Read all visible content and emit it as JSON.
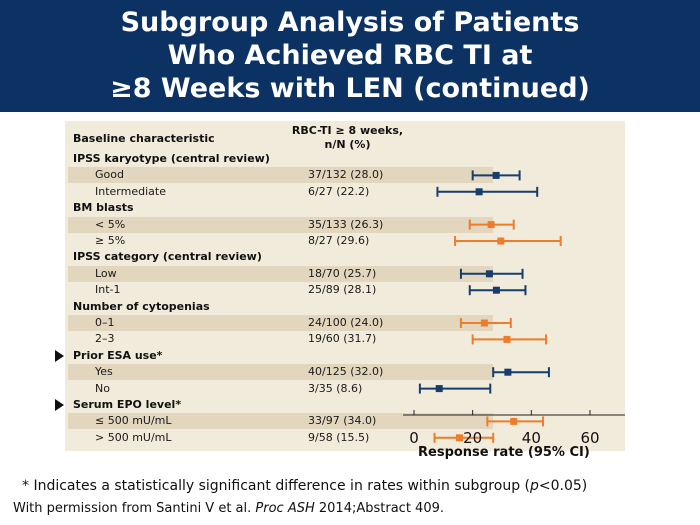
{
  "header": {
    "title_lines": [
      "Subgroup Analysis of Patients",
      "Who Achieved RBC TI at",
      "≥8 Weeks with LEN (continued)"
    ]
  },
  "table": {
    "col1_header": "Baseline characteristic",
    "col2_header_line1": "RBC-TI ≥ 8 weeks,",
    "col2_header_line2": "n/N (%)"
  },
  "chart_data": {
    "type": "forest",
    "xlabel": "Response rate (95% CI)",
    "xlim": [
      0,
      60
    ],
    "xticks": [
      0,
      20,
      40,
      60
    ],
    "colors": {
      "navy": "#173d6b",
      "orange": "#ee7d2b"
    },
    "rows": [
      {
        "type": "category",
        "label": "IPSS karyotype (central review)"
      },
      {
        "type": "item",
        "label": "Good",
        "value": "37/132 (28.0)",
        "est": 28.0,
        "lo": 20,
        "hi": 36,
        "color": "navy"
      },
      {
        "type": "item",
        "label": "Intermediate",
        "value": "6/27 (22.2)",
        "est": 22.2,
        "lo": 8,
        "hi": 42,
        "color": "navy"
      },
      {
        "type": "category",
        "label": "BM blasts"
      },
      {
        "type": "item",
        "label": "< 5%",
        "value": "35/133 (26.3)",
        "est": 26.3,
        "lo": 19,
        "hi": 34,
        "color": "orange"
      },
      {
        "type": "item",
        "label": "≥ 5%",
        "value": "8/27 (29.6)",
        "est": 29.6,
        "lo": 14,
        "hi": 50,
        "color": "orange"
      },
      {
        "type": "category",
        "label": "IPSS category (central review)"
      },
      {
        "type": "item",
        "label": "Low",
        "value": "18/70 (25.7)",
        "est": 25.7,
        "lo": 16,
        "hi": 37,
        "color": "navy"
      },
      {
        "type": "item",
        "label": "Int-1",
        "value": "25/89 (28.1)",
        "est": 28.1,
        "lo": 19,
        "hi": 38,
        "color": "navy"
      },
      {
        "type": "category",
        "label": "Number of cytopenias"
      },
      {
        "type": "item",
        "label": "0–1",
        "value": "24/100 (24.0)",
        "est": 24.0,
        "lo": 16,
        "hi": 33,
        "color": "orange"
      },
      {
        "type": "item",
        "label": "2–3",
        "value": "19/60 (31.7)",
        "est": 31.7,
        "lo": 20,
        "hi": 45,
        "color": "orange"
      },
      {
        "type": "category",
        "label": "Prior ESA use*",
        "marker": true
      },
      {
        "type": "item",
        "label": "Yes",
        "value": "40/125 (32.0)",
        "est": 32.0,
        "lo": 27,
        "hi": 46,
        "color": "navy"
      },
      {
        "type": "item",
        "label": "No",
        "value": "3/35 (8.6)",
        "est": 8.6,
        "lo": 2,
        "hi": 26,
        "color": "navy"
      },
      {
        "type": "category",
        "label": "Serum EPO level*",
        "marker": true
      },
      {
        "type": "item",
        "label": "≤ 500 mU/mL",
        "value": "33/97 (34.0)",
        "est": 34.0,
        "lo": 25,
        "hi": 44,
        "color": "orange"
      },
      {
        "type": "item",
        "label": "> 500 mU/mL",
        "value": "9/58 (15.5)",
        "est": 15.5,
        "lo": 7,
        "hi": 27,
        "color": "orange"
      }
    ]
  },
  "footnotes": {
    "asterisk_prefix": "* Indicates a statistically significant difference in rates within subgroup (",
    "p_symbol": "p",
    "asterisk_suffix": "<0.05)",
    "permission_prefix": "With permission from Santini V et al. ",
    "journal": "Proc ASH",
    "permission_suffix": " 2014;Abstract 409."
  }
}
